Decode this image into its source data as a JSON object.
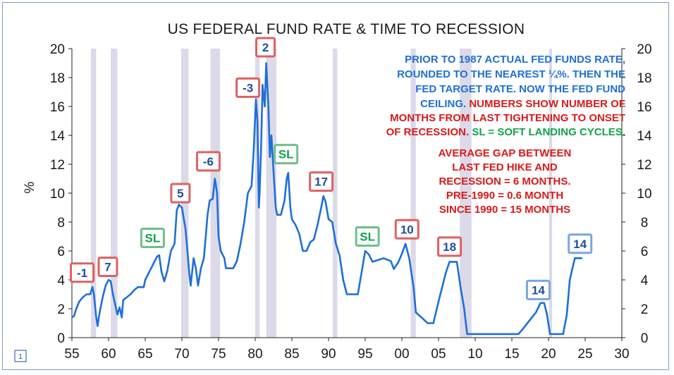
{
  "chart_data": {
    "type": "line",
    "title": "US FEDERAL FUND RATE & TIME TO RECESSION",
    "ylabel": "%",
    "xlim": [
      55,
      30
    ],
    "ylim": [
      0,
      20
    ],
    "x_ticks": [
      "55",
      "60",
      "65",
      "70",
      "75",
      "80",
      "85",
      "90",
      "95",
      "00",
      "05",
      "10",
      "15",
      "20",
      "25",
      "30"
    ],
    "y_ticks": [
      "0",
      "2",
      "4",
      "6",
      "8",
      "10",
      "12",
      "14",
      "16",
      "18",
      "20"
    ],
    "grid": false,
    "recessions": [
      [
        1957.6,
        1958.3
      ],
      [
        1960.3,
        1961.2
      ],
      [
        1969.9,
        1970.9
      ],
      [
        1973.9,
        1975.2
      ],
      [
        1980.0,
        1980.6
      ],
      [
        1981.5,
        1982.9
      ],
      [
        1990.6,
        1991.2
      ],
      [
        2001.2,
        2001.9
      ],
      [
        2007.9,
        2009.5
      ],
      [
        2020.1,
        2020.4
      ]
    ],
    "series": [
      {
        "points": [
          [
            1955.0,
            1.4
          ],
          [
            1955.3,
            1.5
          ],
          [
            1955.6,
            2.0
          ],
          [
            1956.0,
            2.5
          ],
          [
            1956.5,
            2.8
          ],
          [
            1957.0,
            3.0
          ],
          [
            1957.5,
            3.0
          ],
          [
            1957.8,
            3.5
          ],
          [
            1958.0,
            3.0
          ],
          [
            1958.3,
            1.5
          ],
          [
            1958.5,
            0.8
          ],
          [
            1958.8,
            1.8
          ],
          [
            1959.2,
            2.8
          ],
          [
            1959.6,
            3.6
          ],
          [
            1960.0,
            4.0
          ],
          [
            1960.3,
            3.9
          ],
          [
            1960.6,
            3.0
          ],
          [
            1960.9,
            2.3
          ],
          [
            1961.2,
            1.6
          ],
          [
            1961.5,
            2.1
          ],
          [
            1961.8,
            1.4
          ],
          [
            1962.0,
            2.6
          ],
          [
            1962.5,
            2.8
          ],
          [
            1963.0,
            3.0
          ],
          [
            1963.5,
            3.3
          ],
          [
            1964.0,
            3.5
          ],
          [
            1964.8,
            3.5
          ],
          [
            1965.0,
            4.0
          ],
          [
            1966.0,
            5.0
          ],
          [
            1966.6,
            5.6
          ],
          [
            1966.9,
            5.7
          ],
          [
            1967.2,
            4.6
          ],
          [
            1967.6,
            3.9
          ],
          [
            1968.0,
            4.6
          ],
          [
            1968.5,
            6.0
          ],
          [
            1969.0,
            6.5
          ],
          [
            1969.3,
            8.8
          ],
          [
            1969.6,
            9.2
          ],
          [
            1970.0,
            9.0
          ],
          [
            1970.5,
            7.5
          ],
          [
            1971.0,
            4.5
          ],
          [
            1971.2,
            3.6
          ],
          [
            1971.6,
            5.5
          ],
          [
            1971.9,
            4.8
          ],
          [
            1972.2,
            3.6
          ],
          [
            1972.6,
            4.8
          ],
          [
            1973.0,
            5.5
          ],
          [
            1973.5,
            8.5
          ],
          [
            1973.8,
            9.5
          ],
          [
            1974.2,
            9.6
          ],
          [
            1974.5,
            11.0
          ],
          [
            1974.8,
            10.0
          ],
          [
            1975.0,
            7.0
          ],
          [
            1975.3,
            6.0
          ],
          [
            1975.8,
            5.5
          ],
          [
            1976.0,
            4.8
          ],
          [
            1977.0,
            4.8
          ],
          [
            1977.5,
            5.3
          ],
          [
            1978.0,
            6.5
          ],
          [
            1978.5,
            8.0
          ],
          [
            1979.0,
            10.0
          ],
          [
            1979.5,
            10.5
          ],
          [
            1979.8,
            13.0
          ],
          [
            1980.1,
            16.5
          ],
          [
            1980.3,
            15.0
          ],
          [
            1980.5,
            9.0
          ],
          [
            1980.6,
            10.0
          ],
          [
            1980.8,
            13.0
          ],
          [
            1981.0,
            17.5
          ],
          [
            1981.3,
            16.0
          ],
          [
            1981.5,
            19.0
          ],
          [
            1981.8,
            16.0
          ],
          [
            1982.0,
            12.5
          ],
          [
            1982.2,
            14.0
          ],
          [
            1982.5,
            11.5
          ],
          [
            1982.8,
            9.0
          ],
          [
            1983.0,
            8.5
          ],
          [
            1983.5,
            8.5
          ],
          [
            1984.0,
            9.5
          ],
          [
            1984.3,
            11.0
          ],
          [
            1984.5,
            11.4
          ],
          [
            1984.8,
            9.0
          ],
          [
            1985.0,
            8.2
          ],
          [
            1985.5,
            7.8
          ],
          [
            1986.0,
            7.2
          ],
          [
            1986.5,
            6.0
          ],
          [
            1987.0,
            6.0
          ],
          [
            1987.5,
            6.6
          ],
          [
            1988.0,
            6.8
          ],
          [
            1988.5,
            7.8
          ],
          [
            1989.0,
            9.0
          ],
          [
            1989.3,
            9.8
          ],
          [
            1989.6,
            9.4
          ],
          [
            1990.0,
            8.2
          ],
          [
            1990.5,
            8.0
          ],
          [
            1991.0,
            6.5
          ],
          [
            1991.5,
            5.7
          ],
          [
            1992.0,
            4.0
          ],
          [
            1992.5,
            3.0
          ],
          [
            1993.0,
            3.0
          ],
          [
            1994.0,
            3.0
          ],
          [
            1994.5,
            4.5
          ],
          [
            1995.0,
            6.0
          ],
          [
            1995.5,
            5.75
          ],
          [
            1996.0,
            5.25
          ],
          [
            1997.5,
            5.5
          ],
          [
            1998.5,
            5.3
          ],
          [
            1998.9,
            4.75
          ],
          [
            1999.5,
            5.2
          ],
          [
            2000.0,
            5.8
          ],
          [
            2000.5,
            6.5
          ],
          [
            2001.0,
            5.5
          ],
          [
            2001.3,
            4.5
          ],
          [
            2001.6,
            3.5
          ],
          [
            2001.9,
            1.75
          ],
          [
            2003.0,
            1.25
          ],
          [
            2003.5,
            1.0
          ],
          [
            2004.3,
            1.0
          ],
          [
            2005.0,
            2.5
          ],
          [
            2005.5,
            3.5
          ],
          [
            2006.0,
            4.5
          ],
          [
            2006.5,
            5.25
          ],
          [
            2007.5,
            5.25
          ],
          [
            2008.0,
            3.5
          ],
          [
            2008.5,
            2.0
          ],
          [
            2008.9,
            0.25
          ],
          [
            2015.9,
            0.25
          ],
          [
            2016.5,
            0.6
          ],
          [
            2017.5,
            1.25
          ],
          [
            2018.3,
            1.75
          ],
          [
            2018.9,
            2.4
          ],
          [
            2019.4,
            2.4
          ],
          [
            2019.8,
            1.6
          ],
          [
            2020.2,
            0.25
          ],
          [
            2022.0,
            0.25
          ],
          [
            2022.5,
            1.6
          ],
          [
            2022.9,
            4.0
          ],
          [
            2023.4,
            5.1
          ],
          [
            2023.6,
            5.5
          ],
          [
            2024.6,
            5.5
          ]
        ]
      }
    ],
    "annotations": [
      {
        "label": "PRIOR TO 1987 ACTUAL FED FUNDS RATE,",
        "color": "#1f6fd6"
      },
      {
        "label": "ROUNDED TO THE NEAREST ¼%.  THEN THE",
        "color": "#1f6fd6"
      },
      {
        "label": "FED TARGET RATE.  NOW THE FED FUND",
        "color": "#1f6fd6"
      },
      {
        "label": "CEILING.",
        "label2": "NUMBERS SHOW NUMBER OF",
        "color": "#1f6fd6",
        "color2": "#d91a1a"
      },
      {
        "label": "MONTHS FROM LAST TIGHTENING TO ONSET",
        "color": "#d91a1a"
      },
      {
        "label": "OF RECESSION.",
        "label2": "SL = SOFT LANDING CYCLES.",
        "color": "#d91a1a",
        "color2": "#11a24a"
      },
      {
        "label": "AVERAGE GAP BETWEEN",
        "color": "#d91a1a"
      },
      {
        "label": "LAST FED HIKE AND",
        "color": "#d91a1a"
      },
      {
        "label": "RECESSION = 6 MONTHS.",
        "color": "#d91a1a"
      },
      {
        "label": "PRE-1990 = 0.6 MONTH",
        "color": "#d91a1a"
      },
      {
        "label": "SINCE 1990 = 15 MONTHS",
        "color": "#d91a1a"
      }
    ],
    "markers": [
      {
        "label": "-1",
        "x": 1956.4,
        "y": 4.5,
        "kind": "red"
      },
      {
        "label": "7",
        "x": 1959.9,
        "y": 4.9,
        "kind": "red"
      },
      {
        "label": "SL",
        "x": 1966.0,
        "y": 6.9,
        "kind": "green"
      },
      {
        "label": "5",
        "x": 1969.8,
        "y": 10.0,
        "kind": "red"
      },
      {
        "label": "-6",
        "x": 1973.6,
        "y": 12.2,
        "kind": "red"
      },
      {
        "label": "-3",
        "x": 1979.0,
        "y": 17.3,
        "kind": "red"
      },
      {
        "label": "2",
        "x": 1981.4,
        "y": 20.1,
        "kind": "red"
      },
      {
        "label": "SL",
        "x": 1984.2,
        "y": 12.7,
        "kind": "green"
      },
      {
        "label": "17",
        "x": 1989.0,
        "y": 10.8,
        "kind": "red"
      },
      {
        "label": "SL",
        "x": 1995.3,
        "y": 7.0,
        "kind": "green"
      },
      {
        "label": "10",
        "x": 2000.7,
        "y": 7.5,
        "kind": "red"
      },
      {
        "label": "18",
        "x": 2006.5,
        "y": 6.3,
        "kind": "red"
      },
      {
        "label": "14",
        "x": 2018.6,
        "y": 3.3,
        "kind": "blue"
      },
      {
        "label": "14",
        "x": 2024.3,
        "y": 6.5,
        "kind": "blue"
      }
    ],
    "page_number": "1",
    "colors": {
      "line": "#1e6fd9",
      "recession": "#dcd9e8",
      "red": "#e06060",
      "green": "#6fbf8a",
      "blue": "#7aa6e0"
    }
  }
}
